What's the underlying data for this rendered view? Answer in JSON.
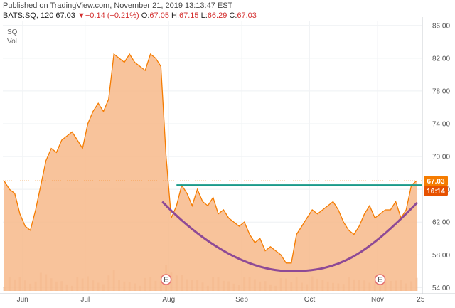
{
  "header": {
    "published": "Published on TradingView.com, November 21, 2019 13:13:47 EST",
    "symbol_interval": "BATS:SQ, 120",
    "last": "67.03",
    "change_arrow": "▼",
    "change": "−0.14 (−0.21%)",
    "o_label": "O:",
    "o_value": "67.05",
    "h_label": "H:",
    "h_value": "67.15",
    "l_label": "L:",
    "l_value": "66.29",
    "c_label": "C:",
    "c_value": "67.03"
  },
  "legend": {
    "symbol": "SQ",
    "volume": "Vol"
  },
  "colors": {
    "area_fill": "#f7b88a",
    "line": "#f57c00",
    "resistance": "#1a9a8a",
    "cup": "#8e4a96",
    "volume": "#e8b896",
    "last_price_tag": "#f57c00",
    "countdown_tag": "#e65100",
    "earnings_marker": "#e57373"
  },
  "chart_data": {
    "type": "area",
    "title": "",
    "xlabel": "",
    "ylabel": "",
    "ylim": [
      53.6,
      86.5
    ],
    "x_tick_labels": [
      "Jun",
      "Jul",
      "Aug",
      "Sep",
      "Oct",
      "Nov",
      "25"
    ],
    "y_tick_labels": [
      "86.00",
      "82.00",
      "78.00",
      "74.00",
      "70.00",
      "66.00",
      "62.00",
      "58.00",
      "54.00"
    ],
    "y_ticks": [
      86,
      82,
      78,
      74,
      70,
      66,
      62,
      58,
      54
    ],
    "grid": true,
    "last_price": "67.03",
    "countdown": "16:14",
    "series": [
      {
        "x": [
          "May 22",
          "May 24",
          "May 27",
          "May 29",
          "May 31",
          "Jun 3",
          "Jun 5",
          "Jun 7",
          "Jun 10",
          "Jun 12",
          "Jun 14",
          "Jun 17",
          "Jun 19",
          "Jun 21",
          "Jun 24",
          "Jun 26",
          "Jun 28",
          "Jul 1",
          "Jul 3",
          "Jul 5",
          "Jul 8",
          "Jul 10",
          "Jul 12",
          "Jul 15",
          "Jul 17",
          "Jul 19",
          "Jul 22",
          "Jul 24",
          "Jul 26",
          "Jul 29",
          "Jul 31",
          "Aug 1",
          "Aug 2",
          "Aug 5",
          "Aug 7",
          "Aug 9",
          "Aug 12",
          "Aug 14",
          "Aug 16",
          "Aug 19",
          "Aug 21",
          "Aug 23",
          "Aug 26",
          "Aug 28",
          "Aug 30",
          "Sep 3",
          "Sep 5",
          "Sep 9",
          "Sep 11",
          "Sep 13",
          "Sep 16",
          "Sep 18",
          "Sep 20",
          "Sep 23",
          "Sep 25",
          "Sep 27",
          "Sep 30",
          "Oct 2",
          "Oct 4",
          "Oct 7",
          "Oct 9",
          "Oct 11",
          "Oct 14",
          "Oct 16",
          "Oct 18",
          "Oct 21",
          "Oct 23",
          "Oct 25",
          "Oct 28",
          "Oct 30",
          "Nov 1",
          "Nov 4",
          "Nov 6",
          "Nov 8",
          "Nov 11",
          "Nov 13",
          "Nov 15",
          "Nov 18",
          "Nov 20",
          "Nov 21"
        ],
        "values": [
          67.0,
          66.0,
          65.5,
          63.0,
          61.5,
          61.0,
          63.5,
          66.5,
          69.5,
          71.0,
          70.5,
          72.0,
          72.5,
          73.0,
          72.0,
          71.0,
          74.0,
          75.5,
          76.5,
          75.5,
          77.0,
          82.5,
          82.0,
          81.5,
          82.5,
          81.5,
          81.0,
          80.5,
          82.5,
          82.0,
          81.0,
          70.0,
          62.5,
          64.0,
          66.5,
          65.5,
          64.0,
          66.0,
          64.5,
          64.0,
          65.0,
          63.0,
          63.5,
          62.5,
          62.0,
          61.5,
          62.0,
          60.5,
          59.5,
          60.0,
          58.5,
          59.0,
          58.5,
          58.0,
          57.0,
          57.0,
          60.5,
          61.5,
          62.5,
          63.5,
          63.0,
          63.5,
          64.0,
          64.5,
          63.5,
          62.0,
          61.0,
          60.5,
          61.5,
          63.0,
          64.0,
          62.5,
          63.0,
          63.5,
          63.5,
          64.5,
          62.5,
          63.5,
          66.5,
          67.03
        ]
      }
    ],
    "resistance_level": 66.5,
    "earnings_markers": [
      {
        "label": "E",
        "date": "Aug 1"
      },
      {
        "label": "E",
        "date": "Nov 6"
      }
    ]
  }
}
